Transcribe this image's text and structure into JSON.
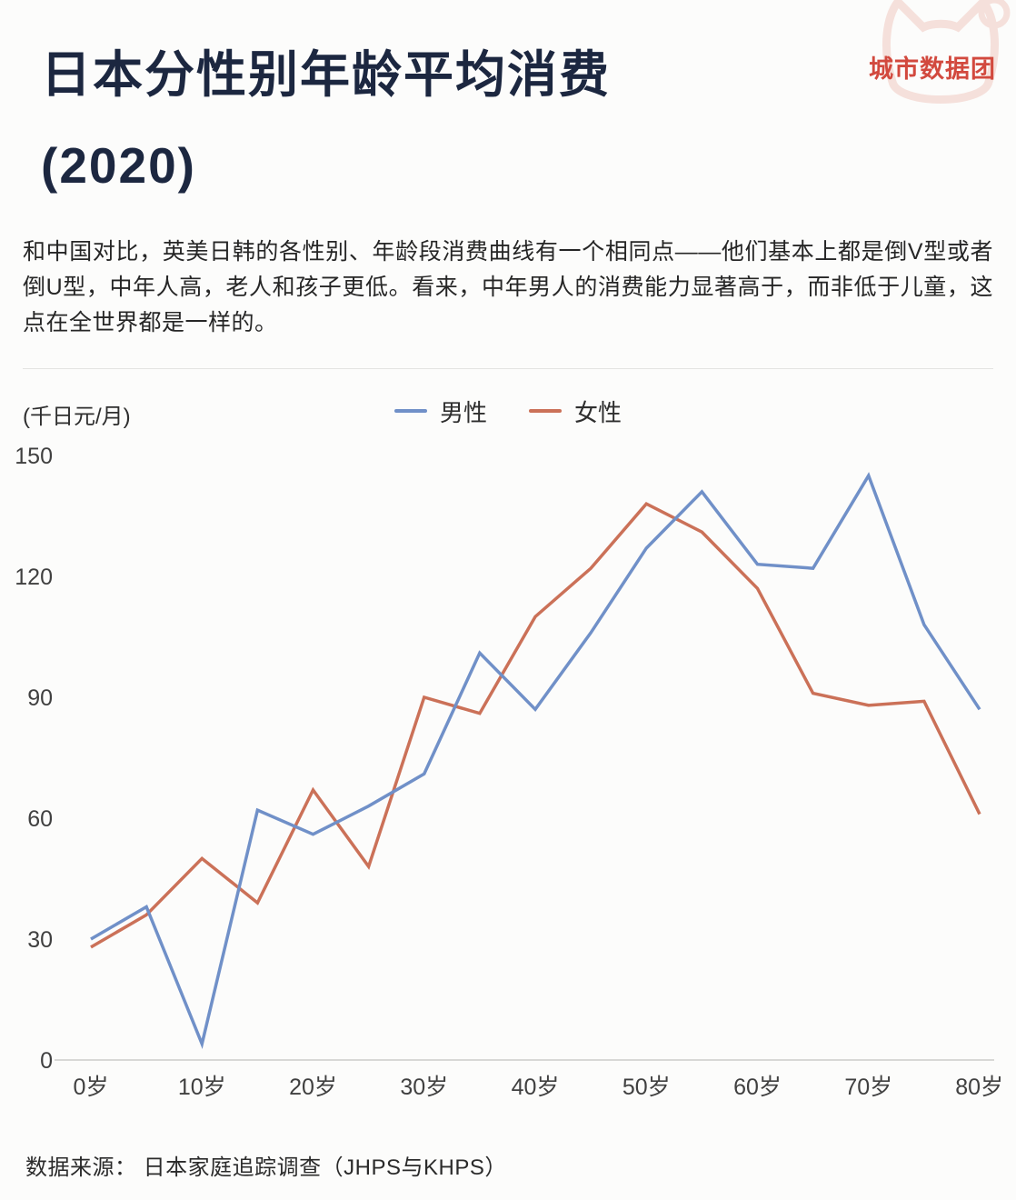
{
  "header": {
    "title_line1": "日本分性别年龄平均消费",
    "title_line2": "(2020)",
    "brand": "城市数据团"
  },
  "intro": {
    "text": "和中国对比，英美日韩的各性别、年龄段消费曲线有一个相同点——他们基本上都是倒V型或者倒U型，中年人高，老人和孩子更低。看来，中年男人的消费能力显著高于，而非低于儿童，这点在全世界都是一样的。"
  },
  "chart_data": {
    "type": "line",
    "title": "日本分性别年龄平均消费（2020）",
    "unit_label": "(千日元/月)",
    "x": [
      0,
      5,
      10,
      15,
      20,
      25,
      30,
      35,
      40,
      45,
      50,
      55,
      60,
      65,
      70,
      75,
      80
    ],
    "x_tick_values": [
      0,
      10,
      20,
      30,
      40,
      50,
      60,
      70,
      80
    ],
    "x_tick_labels": [
      "0岁",
      "10岁",
      "20岁",
      "30岁",
      "40岁",
      "50岁",
      "60岁",
      "70岁",
      "80岁"
    ],
    "ylim": [
      0,
      150
    ],
    "yticks": [
      0,
      30,
      60,
      90,
      120,
      150
    ],
    "grid": false,
    "legend_position": "top-center",
    "series": [
      {
        "name": "男性",
        "color": "#7090c8",
        "values": [
          30,
          38,
          4,
          62,
          56,
          63,
          71,
          101,
          87,
          106,
          127,
          141,
          123,
          122,
          145,
          108,
          87
        ]
      },
      {
        "name": "女性",
        "color": "#cb7158",
        "values": [
          28,
          36,
          50,
          39,
          67,
          48,
          90,
          86,
          110,
          122,
          138,
          131,
          117,
          91,
          88,
          89,
          61
        ]
      }
    ]
  },
  "footer": {
    "source": "数据来源： 日本家庭追踪调查（JHPS与KHPS）"
  }
}
